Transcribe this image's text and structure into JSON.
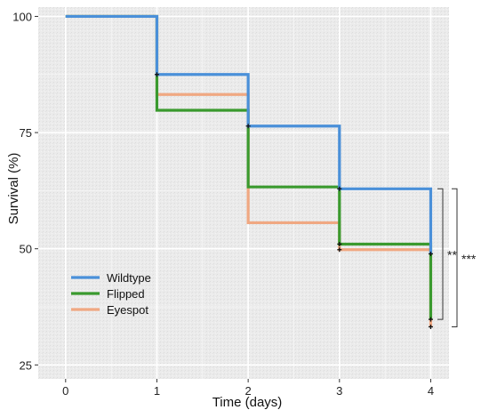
{
  "chart_data": {
    "type": "line",
    "step": true,
    "xlabel": "Time (days)",
    "ylabel": "Survival (%)",
    "xlim": [
      -0.3,
      4.2
    ],
    "ylim": [
      22,
      102
    ],
    "x_ticks": [
      0,
      1,
      2,
      3,
      4
    ],
    "y_ticks": [
      25,
      50,
      75,
      100
    ],
    "grid": true,
    "legend_position": "lower-left",
    "series": [
      {
        "name": "Wildtype",
        "color": "#4a90d9",
        "x": [
          0,
          1,
          2,
          3,
          4,
          4
        ],
        "y": [
          100,
          87.5,
          76.4,
          62.9,
          48.9,
          48.9
        ],
        "censor_marks": [
          [
            1,
            87.5
          ],
          [
            2,
            76.4
          ],
          [
            3,
            62.9
          ],
          [
            4,
            48.9
          ]
        ]
      },
      {
        "name": "Flipped",
        "color": "#3a9a2e",
        "x": [
          0,
          1,
          2,
          3,
          4,
          4
        ],
        "y": [
          100,
          79.8,
          63.3,
          51.0,
          34.8,
          34.8
        ],
        "censor_marks": [
          [
            3,
            51.0
          ],
          [
            4,
            34.8
          ]
        ]
      },
      {
        "name": "Eyespot",
        "color": "#f0a882",
        "x": [
          0,
          1,
          2,
          3,
          4,
          4
        ],
        "y": [
          100,
          83.2,
          55.6,
          49.8,
          33.2,
          33.2
        ],
        "censor_marks": [
          [
            3,
            49.8
          ],
          [
            4,
            33.2
          ]
        ]
      }
    ],
    "annotations": [
      {
        "text": "**",
        "y_range": [
          34.8,
          62.9
        ]
      },
      {
        "text": "***",
        "y_range": [
          33.2,
          62.9
        ]
      }
    ]
  }
}
